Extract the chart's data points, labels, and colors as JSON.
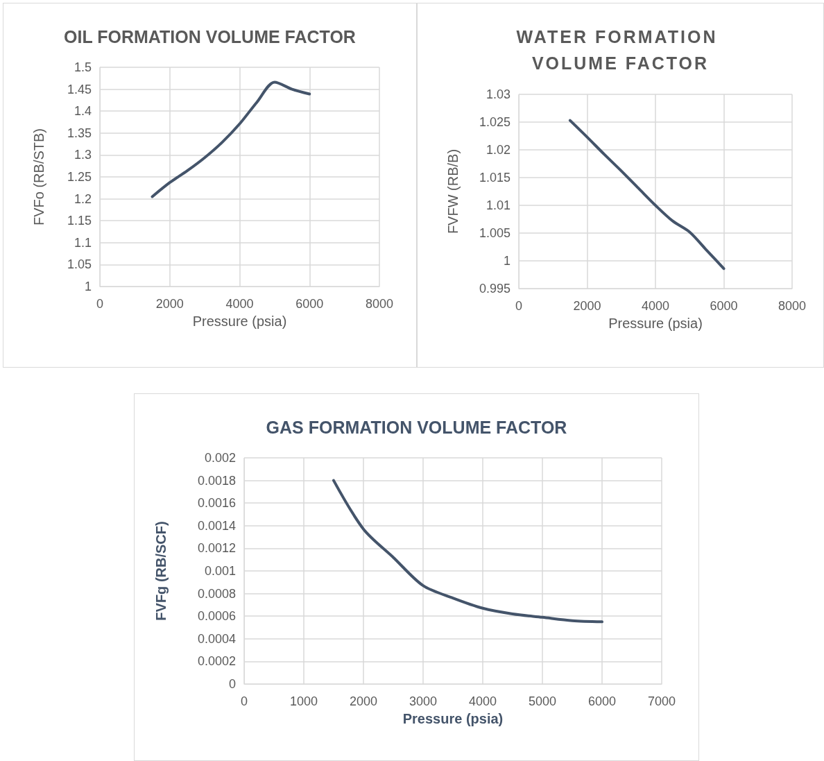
{
  "chart_data": [
    {
      "type": "line",
      "title": "OIL FORMATION VOLUME FACTOR",
      "xlabel": "Pressure (psia)",
      "ylabel": "FVFo (RB/STB)",
      "xlim": [
        0,
        8000
      ],
      "xticks": [
        0,
        2000,
        4000,
        6000,
        8000
      ],
      "ylim": [
        1,
        1.5
      ],
      "yticks": [
        1,
        1.05,
        1.1,
        1.15,
        1.2,
        1.25,
        1.3,
        1.35,
        1.4,
        1.45,
        1.5
      ],
      "grid": true,
      "series": [
        {
          "color": "#44546a",
          "x": [
            1500,
            2000,
            2500,
            3000,
            3500,
            4000,
            4500,
            5000,
            5500,
            6000
          ],
          "values": [
            1.205,
            1.237,
            1.264,
            1.294,
            1.329,
            1.371,
            1.421,
            1.466,
            1.45,
            1.439
          ]
        }
      ]
    },
    {
      "type": "line",
      "title": "WATER FORMATION VOLUME FACTOR",
      "xlabel": "Pressure (psia)",
      "ylabel": "FVFW (RB/B)",
      "xlim": [
        0,
        8000
      ],
      "xticks": [
        0,
        2000,
        4000,
        6000,
        8000
      ],
      "ylim": [
        0.995,
        1.03
      ],
      "yticks": [
        0.995,
        1,
        1.005,
        1.01,
        1.015,
        1.02,
        1.025,
        1.03
      ],
      "grid": true,
      "series": [
        {
          "color": "#44546a",
          "x": [
            1500,
            2000,
            2500,
            3000,
            3500,
            4000,
            4500,
            5000,
            5500,
            6000
          ],
          "values": [
            1.0253,
            1.0223,
            1.0192,
            1.0162,
            1.0131,
            1.01,
            1.0072,
            1.0052,
            1.0019,
            0.9986
          ]
        }
      ]
    },
    {
      "type": "line",
      "title": "GAS FORMATION VOLUME FACTOR",
      "xlabel": "Pressure (psia)",
      "ylabel": "FVFg (RB/SCF)",
      "xlim": [
        0,
        7000
      ],
      "xticks": [
        0,
        1000,
        2000,
        3000,
        4000,
        5000,
        6000,
        7000
      ],
      "ylim": [
        0,
        0.002
      ],
      "yticks": [
        0,
        0.0002,
        0.0004,
        0.0006,
        0.0008,
        0.001,
        0.0012,
        0.0014,
        0.0016,
        0.0018,
        0.002
      ],
      "grid": true,
      "series": [
        {
          "color": "#44546a",
          "x": [
            1500,
            2000,
            2500,
            3000,
            3500,
            4000,
            4500,
            5000,
            5500,
            6000
          ],
          "values": [
            0.0018,
            0.00137,
            0.00112,
            0.00087,
            0.00076,
            0.00067,
            0.00062,
            0.00059,
            0.00056,
            0.00055
          ]
        }
      ]
    }
  ]
}
